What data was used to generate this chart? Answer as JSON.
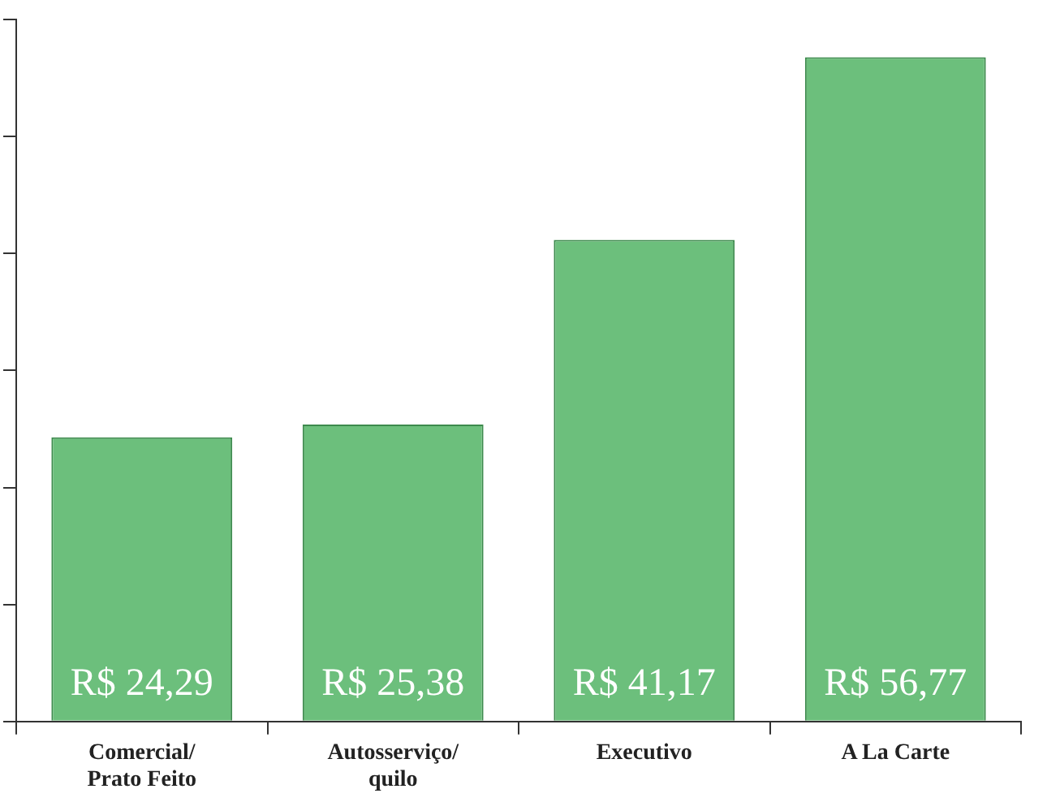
{
  "chart_data": {
    "type": "bar",
    "categories": [
      "Comercial/\nPrato Feito",
      "Autosserviço/\nquilo",
      "Executivo",
      "A La Carte"
    ],
    "values": [
      24.29,
      25.38,
      41.17,
      56.77
    ],
    "value_labels": [
      "R$ 24,29",
      "R$ 25,38",
      "R$ 41,17",
      "R$ 56,77"
    ],
    "color": "#6cbf7c",
    "ylim": [
      0,
      60
    ],
    "yticks": [
      {
        "value": 0,
        "label": null
      },
      {
        "value": 10,
        "label": null
      },
      {
        "value": 20,
        "label": null
      },
      {
        "value": 30,
        "label": null
      },
      {
        "value": 40,
        "label": null
      },
      {
        "value": 50,
        "label": null
      },
      {
        "value": 60,
        "label": null
      }
    ],
    "grid": false,
    "legend": false
  }
}
